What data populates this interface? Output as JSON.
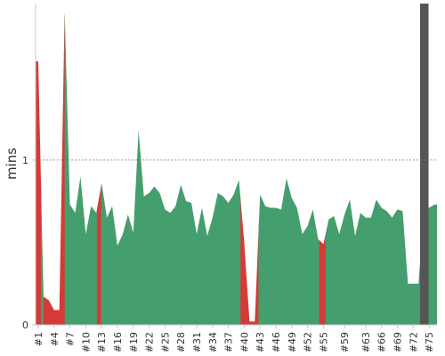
{
  "chart_data": {
    "type": "area",
    "ylabel": "mins",
    "ylim": [
      0,
      1.95
    ],
    "y_ticks": [
      {
        "value": 0,
        "label": "0"
      },
      {
        "value": 1,
        "label": "1"
      }
    ],
    "reference_line": {
      "value": 1,
      "style": "dotted"
    },
    "x_ticks": [
      {
        "x": 1,
        "label": "#1"
      },
      {
        "x": 4,
        "label": "#4"
      },
      {
        "x": 7,
        "label": "#7"
      },
      {
        "x": 10,
        "label": "#10"
      },
      {
        "x": 13,
        "label": "#13"
      },
      {
        "x": 16,
        "label": "#16"
      },
      {
        "x": 19,
        "label": "#19"
      },
      {
        "x": 22,
        "label": "#22"
      },
      {
        "x": 25,
        "label": "#25"
      },
      {
        "x": 28,
        "label": "#28"
      },
      {
        "x": 31,
        "label": "#31"
      },
      {
        "x": 34,
        "label": "#34"
      },
      {
        "x": 37,
        "label": "#37"
      },
      {
        "x": 40,
        "label": "#40"
      },
      {
        "x": 43,
        "label": "#43"
      },
      {
        "x": 46,
        "label": "#46"
      },
      {
        "x": 49,
        "label": "#49"
      },
      {
        "x": 52,
        "label": "#52"
      },
      {
        "x": 55,
        "label": "#55"
      },
      {
        "x": 59,
        "label": "#59"
      },
      {
        "x": 63,
        "label": "#63"
      },
      {
        "x": 66,
        "label": "#66"
      },
      {
        "x": 69,
        "label": "#69"
      },
      {
        "x": 72,
        "label": "#72"
      },
      {
        "x": 75,
        "label": "#75"
      }
    ],
    "x_range": [
      0.5,
      76.5
    ],
    "x": [
      1,
      2,
      3,
      4,
      5,
      6,
      7,
      8,
      9,
      10,
      11,
      12,
      13,
      14,
      15,
      16,
      17,
      18,
      19,
      20,
      21,
      22,
      23,
      24,
      25,
      26,
      27,
      28,
      29,
      30,
      31,
      32,
      33,
      34,
      35,
      36,
      37,
      38,
      39,
      40,
      41,
      42,
      43,
      44,
      45,
      46,
      47,
      48,
      49,
      50,
      51,
      52,
      53,
      54,
      55,
      56,
      57,
      58,
      59,
      60,
      61,
      62,
      63,
      64,
      65,
      66,
      67,
      68,
      69,
      70,
      71,
      72,
      73,
      74,
      75,
      76
    ],
    "values": [
      1.6,
      0.17,
      0.15,
      0.09,
      0.09,
      1.9,
      0.73,
      0.68,
      0.9,
      0.55,
      0.72,
      0.68,
      0.86,
      0.65,
      0.72,
      0.48,
      0.55,
      0.67,
      0.56,
      1.18,
      0.78,
      0.8,
      0.84,
      0.8,
      0.7,
      0.68,
      0.72,
      0.85,
      0.75,
      0.74,
      0.55,
      0.71,
      0.54,
      0.65,
      0.8,
      0.78,
      0.74,
      0.79,
      0.88,
      0.5,
      0.02,
      0.02,
      0.79,
      0.72,
      0.71,
      0.71,
      0.7,
      0.89,
      0.77,
      0.71,
      0.55,
      0.6,
      0.7,
      0.52,
      0.49,
      0.64,
      0.66,
      0.55,
      0.67,
      0.76,
      0.54,
      0.68,
      0.65,
      0.65,
      0.76,
      0.71,
      0.69,
      0.65,
      0.7,
      0.69,
      0.25,
      0.25,
      0.25,
      0.7,
      0.71,
      0.73
    ],
    "band_colors": {
      "good": "#459e6e",
      "bad": "#d63a37",
      "marker": "#555555"
    },
    "bands": [
      {
        "from": 0.5,
        "to": 1.5,
        "status": "bad"
      },
      {
        "from": 1.5,
        "to": 2.0,
        "status": "good"
      },
      {
        "from": 2.0,
        "to": 6.0,
        "status": "bad"
      },
      {
        "from": 6.0,
        "to": 12.1,
        "status": "good"
      },
      {
        "from": 12.1,
        "to": 12.9,
        "status": "bad"
      },
      {
        "from": 12.9,
        "to": 39.3,
        "status": "good"
      },
      {
        "from": 39.3,
        "to": 42.7,
        "status": "bad"
      },
      {
        "from": 42.7,
        "to": 54.2,
        "status": "good"
      },
      {
        "from": 54.2,
        "to": 55.4,
        "status": "bad"
      },
      {
        "from": 55.4,
        "to": 76.5,
        "status": "good"
      }
    ],
    "marker_band": {
      "from": 73.3,
      "to": 74.9
    }
  }
}
